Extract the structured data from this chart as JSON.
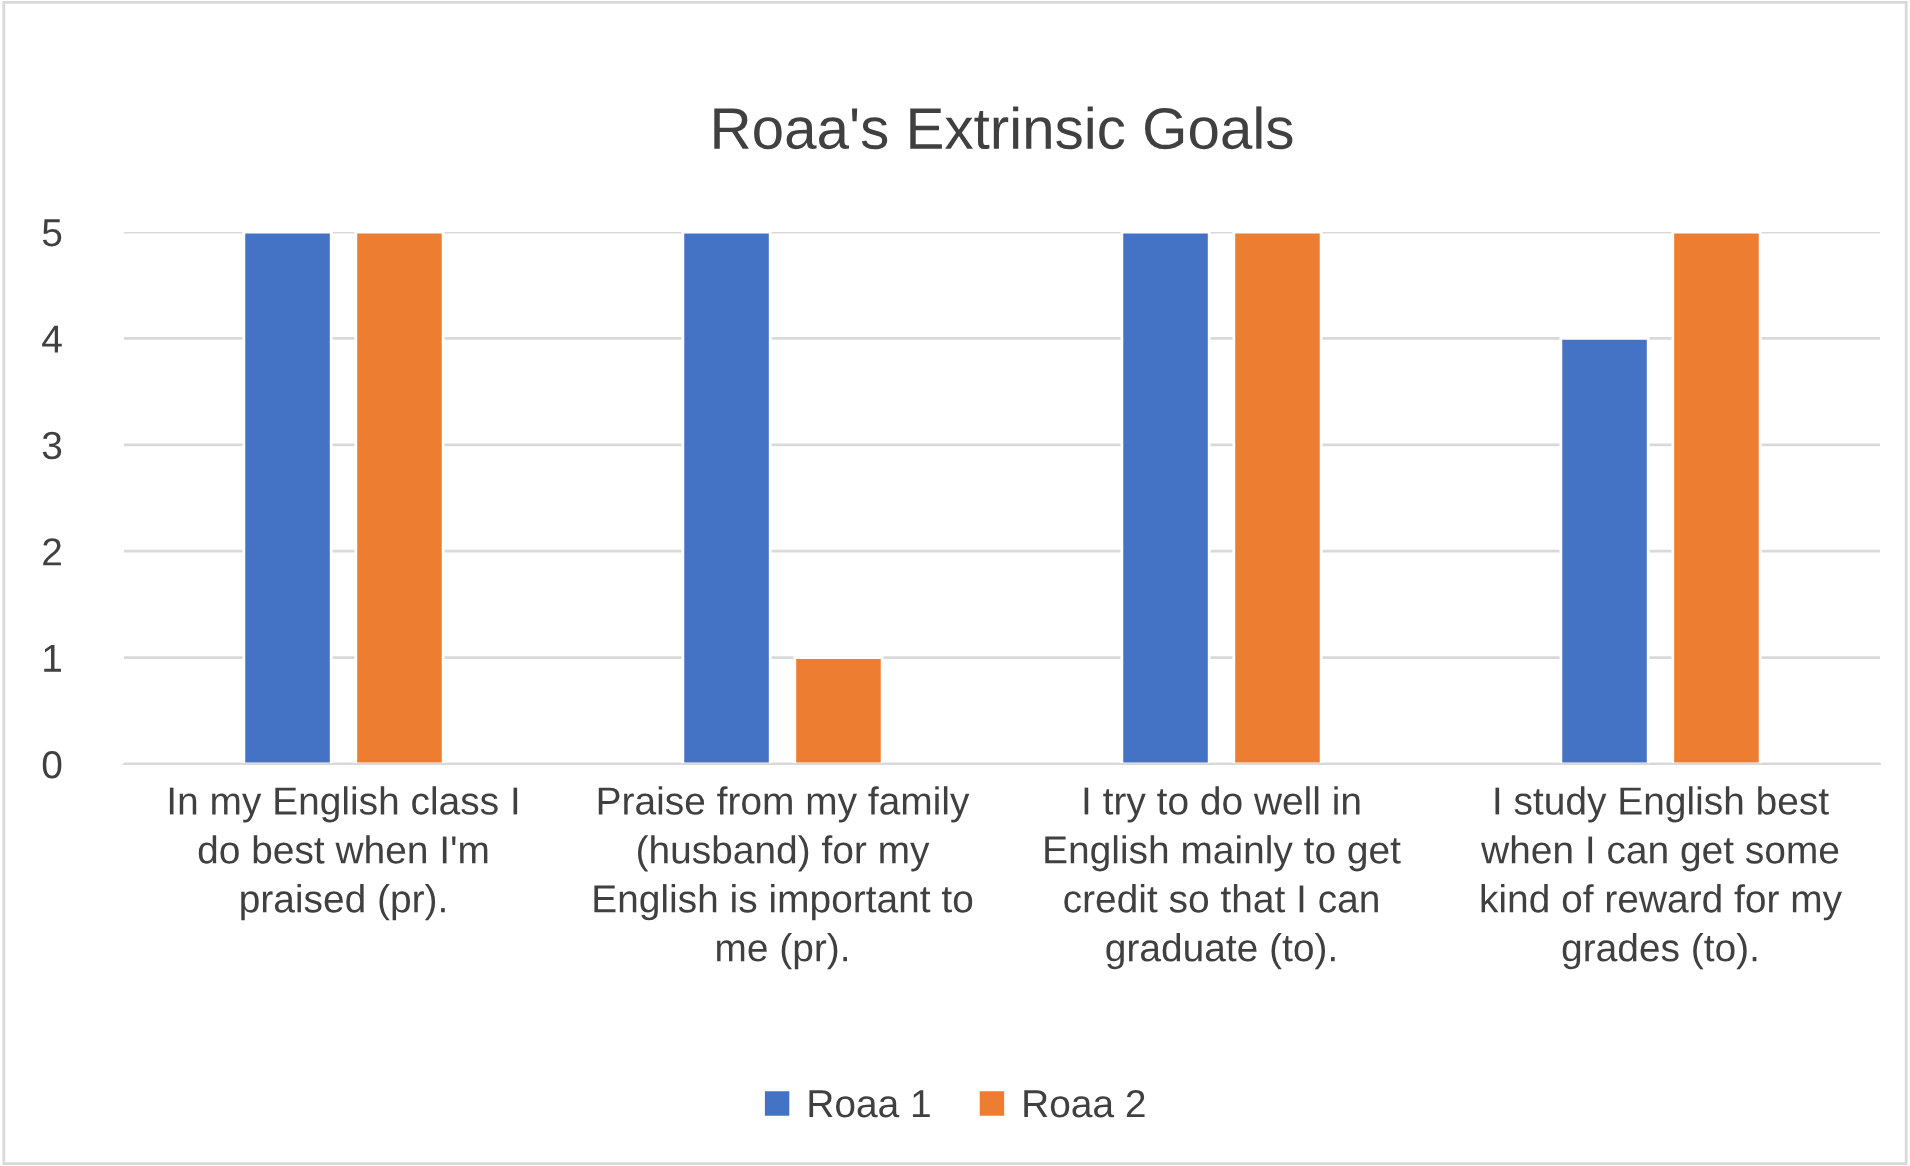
{
  "chart_data": {
    "type": "bar",
    "title": "Roaa's Extrinsic Goals",
    "categories": [
      "In my English class I\ndo best when I'm\npraised (pr).",
      "Praise from my family\n(husband) for my\nEnglish is important to\nme (pr).",
      "I try to do well in\nEnglish mainly to get\ncredit so that I can\ngraduate (to).",
      "I study English best\nwhen I can get some\nkind of reward for my\ngrades (to)."
    ],
    "series": [
      {
        "name": "Roaa 1",
        "color": "#4472c4",
        "values": [
          5,
          5,
          5,
          4
        ]
      },
      {
        "name": "Roaa 2",
        "color": "#ed7d31",
        "values": [
          5,
          1,
          5,
          5
        ]
      }
    ],
    "ylim": [
      0,
      5
    ],
    "yticks": [
      0,
      1,
      2,
      3,
      4,
      5
    ],
    "grid": "y",
    "legend": "bottom"
  }
}
